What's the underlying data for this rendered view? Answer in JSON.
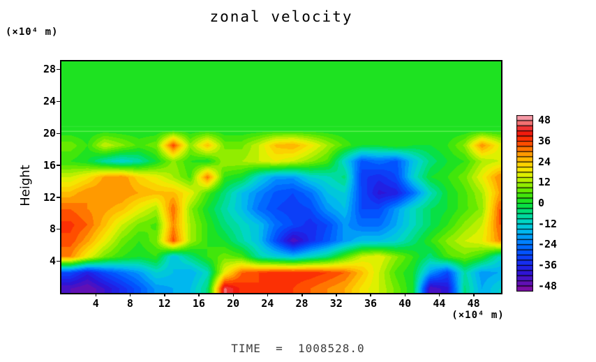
{
  "title": "zonal velocity",
  "y_axis_title": "Height",
  "y_axis_unit": "(×10⁴ m)",
  "x_axis_unit": "(×10⁴ m)",
  "time_label": "TIME  =  1008528.0",
  "colors": {
    "background": "#ffffff",
    "frame": "#000000",
    "uniform_field_green": "#1DE221",
    "time_text": "#3c3c3c"
  },
  "chart_data": {
    "type": "heatmap",
    "title": "zonal velocity",
    "xlabel": "(×10⁴ m)",
    "ylabel": "Height (×10⁴ m)",
    "x_range": [
      0,
      51.2
    ],
    "y_range": [
      0,
      29
    ],
    "xticks": [
      4,
      8,
      12,
      16,
      20,
      24,
      28,
      32,
      36,
      40,
      44,
      48
    ],
    "yticks": [
      4,
      8,
      12,
      16,
      20,
      24,
      28
    ],
    "grid_on": false,
    "legend_position": "right-colorbar",
    "colorbar": {
      "min": -51,
      "max": 51,
      "band_size": 3,
      "tick_labels": [
        48,
        36,
        24,
        12,
        0,
        -12,
        -24,
        -36,
        -48
      ]
    },
    "palette_stops": [
      {
        "v": -51,
        "c": "#8A0D9E"
      },
      {
        "v": -46,
        "c": "#5B10B8"
      },
      {
        "v": -40,
        "c": "#2A14D8"
      },
      {
        "v": -34,
        "c": "#1430F2"
      },
      {
        "v": -28,
        "c": "#0055FF"
      },
      {
        "v": -22,
        "c": "#0085FF"
      },
      {
        "v": -16,
        "c": "#00BBEE"
      },
      {
        "v": -10,
        "c": "#00D8C0"
      },
      {
        "v": -4,
        "c": "#00DF6F"
      },
      {
        "v": 0,
        "c": "#0CE02C"
      },
      {
        "v": 6,
        "c": "#52E800"
      },
      {
        "v": 12,
        "c": "#A6EE00"
      },
      {
        "v": 18,
        "c": "#F0F000"
      },
      {
        "v": 24,
        "c": "#FFC800"
      },
      {
        "v": 30,
        "c": "#FF8A00"
      },
      {
        "v": 36,
        "c": "#FF3A00"
      },
      {
        "v": 42,
        "c": "#EE1111"
      },
      {
        "v": 46,
        "c": "#F36A6A"
      },
      {
        "v": 51,
        "c": "#F7ABBE"
      }
    ],
    "grid": {
      "x": [
        1,
        3,
        5,
        7,
        9,
        11,
        13,
        15,
        17,
        19,
        21,
        23,
        25,
        27,
        29,
        31,
        33,
        35,
        37,
        39,
        41,
        43,
        45,
        47,
        49,
        51
      ],
      "y": [
        28.5,
        26.5,
        24.5,
        22.5,
        20.5,
        18.5,
        16.5,
        14.5,
        12.5,
        10.5,
        8.5,
        6.5,
        4.5,
        2.5,
        0.6
      ],
      "values": [
        [
          0,
          0,
          0,
          0,
          0,
          0,
          0,
          0,
          0,
          0,
          0,
          0,
          0,
          0,
          0,
          0,
          0,
          0,
          0,
          0,
          0,
          0,
          0,
          0,
          0,
          0
        ],
        [
          0,
          0,
          0,
          0,
          0,
          0,
          0,
          0,
          0,
          0,
          0,
          0,
          0,
          0,
          0,
          0,
          0,
          0,
          0,
          0,
          0,
          0,
          0,
          0,
          0,
          0
        ],
        [
          0,
          0,
          0,
          0,
          0,
          0,
          0,
          0,
          0,
          0,
          0,
          0,
          0,
          0,
          0,
          0,
          0,
          0,
          0,
          0,
          0,
          0,
          0,
          0,
          0,
          0
        ],
        [
          0,
          0,
          0,
          0,
          0,
          0,
          0,
          0,
          0,
          0,
          0,
          0,
          0,
          0,
          0,
          0,
          0,
          0,
          0,
          0,
          0,
          0,
          0,
          0,
          0,
          0
        ],
        [
          0,
          0,
          0,
          0,
          0,
          0,
          0,
          0,
          0,
          0,
          0,
          0,
          0,
          0,
          0,
          0,
          0,
          0,
          0,
          0,
          0,
          0,
          0,
          0,
          0,
          0
        ],
        [
          8,
          3,
          15,
          10,
          5,
          8,
          36,
          10,
          25,
          8,
          8,
          15,
          25,
          27,
          20,
          12,
          5,
          0,
          0,
          3,
          0,
          0,
          3,
          10,
          30,
          18
        ],
        [
          3,
          0,
          -8,
          -12,
          -8,
          0,
          10,
          3,
          0,
          12,
          12,
          15,
          18,
          15,
          10,
          5,
          -12,
          -28,
          -25,
          -28,
          -15,
          -5,
          0,
          3,
          12,
          15
        ],
        [
          15,
          20,
          28,
          30,
          22,
          18,
          12,
          5,
          32,
          3,
          0,
          -12,
          -20,
          -20,
          -12,
          -10,
          -5,
          -32,
          -35,
          -30,
          -12,
          0,
          3,
          8,
          18,
          30
        ],
        [
          25,
          30,
          30,
          30,
          27,
          25,
          25,
          18,
          5,
          -5,
          -15,
          -22,
          -28,
          -30,
          -25,
          -15,
          -12,
          -30,
          -40,
          -38,
          -25,
          -10,
          0,
          5,
          12,
          27
        ],
        [
          33,
          30,
          28,
          25,
          18,
          12,
          33,
          10,
          0,
          -8,
          -15,
          -25,
          -30,
          -32,
          -30,
          -20,
          -15,
          -30,
          -30,
          -20,
          -10,
          -3,
          0,
          5,
          10,
          33
        ],
        [
          37,
          33,
          25,
          15,
          8,
          5,
          30,
          12,
          3,
          -5,
          -10,
          -15,
          -25,
          -30,
          -35,
          -30,
          -20,
          -25,
          -25,
          -18,
          -10,
          -3,
          3,
          10,
          15,
          33
        ],
        [
          35,
          28,
          18,
          8,
          3,
          8,
          35,
          12,
          3,
          0,
          -8,
          -15,
          -30,
          -45,
          -35,
          -28,
          -20,
          -15,
          -15,
          -12,
          -5,
          3,
          10,
          15,
          18,
          30
        ],
        [
          30,
          18,
          8,
          3,
          0,
          3,
          -15,
          -5,
          3,
          8,
          5,
          -8,
          -12,
          -15,
          -10,
          -5,
          5,
          15,
          18,
          10,
          3,
          -5,
          5,
          8,
          3,
          -10
        ],
        [
          -30,
          -38,
          -30,
          -25,
          -20,
          -12,
          -15,
          -18,
          -10,
          18,
          33,
          36,
          38,
          38,
          38,
          36,
          33,
          25,
          15,
          5,
          0,
          -20,
          -30,
          -8,
          -20,
          -18
        ],
        [
          -45,
          -48,
          -42,
          -35,
          -28,
          -20,
          -18,
          -15,
          -5,
          46,
          38,
          36,
          38,
          36,
          33,
          30,
          27,
          20,
          15,
          8,
          0,
          -45,
          -40,
          -5,
          -18,
          -12
        ]
      ]
    },
    "interface_lines": [
      {
        "y": 20.3,
        "color": "#9BFF86",
        "alpha": 0.55
      },
      {
        "y": 20.9,
        "color": "#5BF05B",
        "alpha": 0.35
      }
    ]
  }
}
